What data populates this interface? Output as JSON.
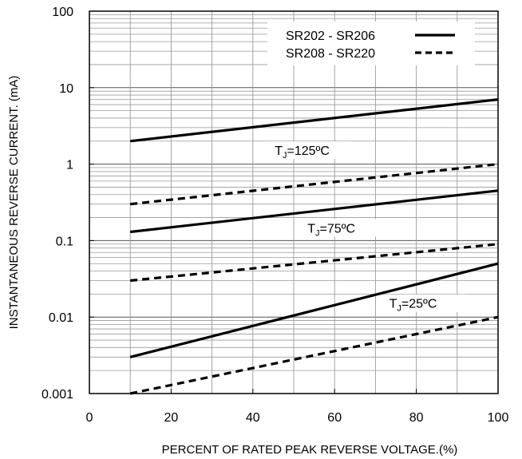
{
  "chart_data": {
    "type": "line",
    "title": "",
    "xlabel": "PERCENT OF RATED PEAK REVERSE VOLTAGE.(%)",
    "ylabel": "INSTANTANEOUS REVERSE CURRENT. (mA)",
    "xlim": [
      0,
      100
    ],
    "ylim": [
      0.001,
      100
    ],
    "yscale": "log",
    "grid": true,
    "legend_position": "top-right",
    "x_ticks": [
      "0",
      "20",
      "40",
      "60",
      "80",
      "100"
    ],
    "y_ticks": [
      "0.001",
      "0.01",
      "0.1",
      "1",
      "10",
      "100"
    ],
    "legend": [
      {
        "name": "SR202 - SR206",
        "style": "solid"
      },
      {
        "name": "SR208 - SR220",
        "style": "dashed"
      }
    ],
    "series": [
      {
        "name": "SR202 - SR206",
        "condition": "TJ=125°C",
        "style": "solid",
        "x": [
          10,
          100
        ],
        "y": [
          2,
          7
        ]
      },
      {
        "name": "SR208 - SR220",
        "condition": "TJ=125°C",
        "style": "dashed",
        "x": [
          10,
          100
        ],
        "y": [
          0.3,
          1
        ]
      },
      {
        "name": "SR202 - SR206",
        "condition": "TJ=75°C",
        "style": "solid",
        "x": [
          10,
          100
        ],
        "y": [
          0.13,
          0.45
        ]
      },
      {
        "name": "SR208 - SR220",
        "condition": "TJ=75°C",
        "style": "dashed",
        "x": [
          10,
          100
        ],
        "y": [
          0.03,
          0.09
        ]
      },
      {
        "name": "SR202 - SR206",
        "condition": "TJ=25°C",
        "style": "solid",
        "x": [
          10,
          100
        ],
        "y": [
          0.003,
          0.05
        ]
      },
      {
        "name": "SR208 - SR220",
        "condition": "TJ=25°C",
        "style": "dashed",
        "x": [
          10,
          100
        ],
        "y": [
          0.001,
          0.01
        ]
      }
    ],
    "annotations": [
      {
        "text_main": "T",
        "text_sub": "J",
        "text_rest": "=125ºC",
        "x": 52,
        "y": 1.45
      },
      {
        "text_main": "T",
        "text_sub": "J",
        "text_rest": "=75ºC",
        "x": 60,
        "y": 0.14
      },
      {
        "text_main": "T",
        "text_sub": "J",
        "text_rest": "=25ºC",
        "x": 80,
        "y": 0.0145
      }
    ]
  }
}
